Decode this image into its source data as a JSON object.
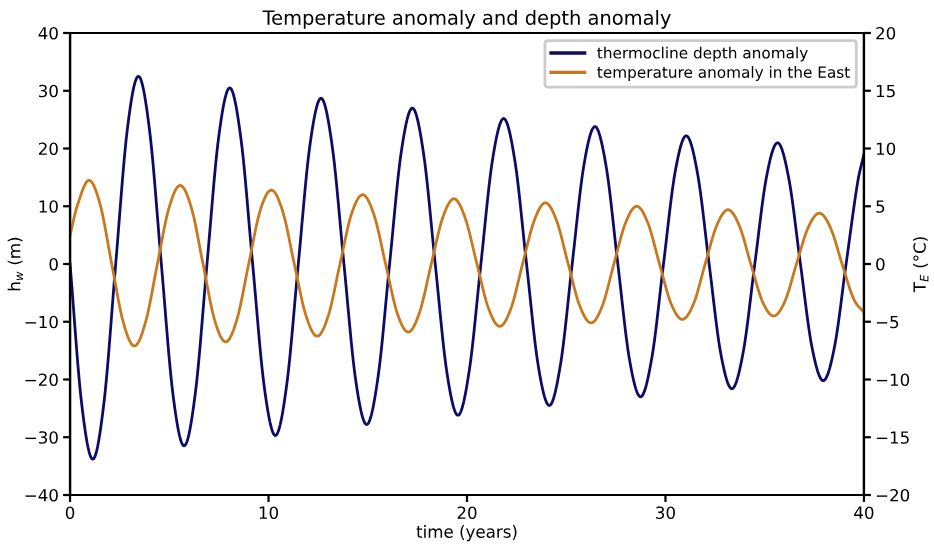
{
  "chart_data": {
    "type": "line",
    "title": "Temperature anomaly and depth anomaly",
    "xlabel": "time (years)",
    "ylabel": "h$_{w}$ (m)",
    "y2label": "T$_{E}$ (°C)",
    "xlim": [
      0,
      40
    ],
    "xticks": [
      0,
      10,
      20,
      30,
      40
    ],
    "ylim": [
      -40,
      40
    ],
    "yticks": [
      -40,
      -30,
      -20,
      -10,
      0,
      10,
      20,
      30,
      40
    ],
    "y2lim": [
      -20,
      20
    ],
    "y2ticks": [
      -20,
      -15,
      -10,
      -5,
      0,
      5,
      10,
      15,
      20
    ],
    "grid": false,
    "legend": "top right",
    "line_style": "solid",
    "marker": "none",
    "series": [
      {
        "name": "thermocline depth anomaly",
        "color": "#0c0c66",
        "x": [
          0,
          0.575,
          1.15,
          1.725,
          2.3,
          2.875,
          3.45,
          4.025,
          4.6,
          5.175,
          5.75,
          6.325,
          6.9,
          7.475,
          8.05,
          8.625,
          9.2,
          9.775,
          10.35,
          10.925,
          11.5,
          12.075,
          12.65,
          13.225,
          13.8,
          14.375,
          14.95,
          15.525,
          16.1,
          16.675,
          17.25,
          17.825,
          18.4,
          18.975,
          19.55,
          20.125,
          20.7,
          21.275,
          21.85,
          22.425,
          23.0,
          23.575,
          24.15,
          24.725,
          25.3,
          25.875,
          26.45,
          27.025,
          27.6,
          28.175,
          28.75,
          29.325,
          29.9,
          30.475,
          31.05,
          31.625,
          32.2,
          32.775,
          33.35,
          33.925,
          34.5,
          35.075,
          35.65,
          36.225,
          36.8,
          37.375,
          37.95,
          38.525,
          39.1,
          39.675,
          40.0
        ],
        "values": [
          0,
          -23.9,
          -33.8,
          -23.5,
          0,
          23.0,
          32.5,
          22.6,
          0,
          -22.3,
          -31.5,
          -22.0,
          0,
          21.6,
          30.5,
          21.3,
          0,
          -21.0,
          -29.7,
          -20.7,
          0,
          20.3,
          28.7,
          20.0,
          0,
          -19.7,
          -27.8,
          -19.4,
          0,
          19.1,
          27.0,
          18.8,
          0,
          -18.5,
          -26.2,
          -18.2,
          0,
          17.8,
          25.2,
          17.6,
          0,
          -17.3,
          -24.5,
          -17.1,
          0,
          16.8,
          23.8,
          16.6,
          0,
          -16.3,
          -23.0,
          -16.0,
          0,
          15.7,
          22.2,
          15.5,
          0,
          -15.3,
          -21.6,
          -15.1,
          0,
          14.8,
          21.0,
          14.6,
          0,
          -14.3,
          -20.2,
          -14.2,
          0,
          14.0,
          19.0
        ]
      },
      {
        "name": "temperature anomaly in the East",
        "color": "#c8781e",
        "axis": "y2",
        "x": [
          0,
          0.375,
          0.95,
          1.525,
          2.1,
          2.675,
          3.25,
          3.825,
          4.4,
          4.975,
          5.55,
          6.125,
          6.7,
          7.275,
          7.85,
          8.425,
          9.0,
          9.575,
          10.15,
          10.725,
          11.3,
          11.875,
          12.45,
          13.025,
          13.6,
          14.175,
          14.75,
          15.325,
          15.9,
          16.475,
          17.05,
          17.625,
          18.2,
          18.775,
          19.35,
          19.925,
          20.5,
          21.075,
          21.65,
          22.225,
          22.8,
          23.375,
          23.95,
          24.525,
          25.1,
          25.675,
          26.25,
          26.825,
          27.4,
          27.975,
          28.55,
          29.125,
          29.7,
          30.275,
          30.85,
          31.425,
          32.0,
          32.575,
          33.15,
          33.725,
          34.3,
          34.875,
          35.45,
          36.025,
          36.6,
          37.175,
          37.75,
          38.325,
          38.9,
          39.475,
          40.0
        ],
        "values": [
          2.5,
          5.1,
          7.25,
          5.1,
          0,
          -5.0,
          -7.1,
          -4.9,
          0,
          4.8,
          6.8,
          4.8,
          0,
          -4.8,
          -6.75,
          -4.7,
          0,
          4.6,
          6.4,
          4.5,
          0,
          -4.4,
          -6.25,
          -4.4,
          0,
          4.3,
          6.0,
          4.2,
          0,
          -4.2,
          -5.9,
          -4.1,
          0,
          4.0,
          5.65,
          3.9,
          0,
          -3.8,
          -5.4,
          -3.8,
          0,
          3.7,
          5.3,
          3.7,
          0,
          -3.6,
          -5.1,
          -3.6,
          0,
          3.5,
          5.0,
          3.5,
          0,
          -3.4,
          -4.8,
          -3.4,
          0,
          3.3,
          4.7,
          3.3,
          0,
          -3.2,
          -4.5,
          -3.2,
          0,
          3.1,
          4.4,
          3.1,
          0,
          -3.0,
          -4.2
        ]
      }
    ]
  }
}
